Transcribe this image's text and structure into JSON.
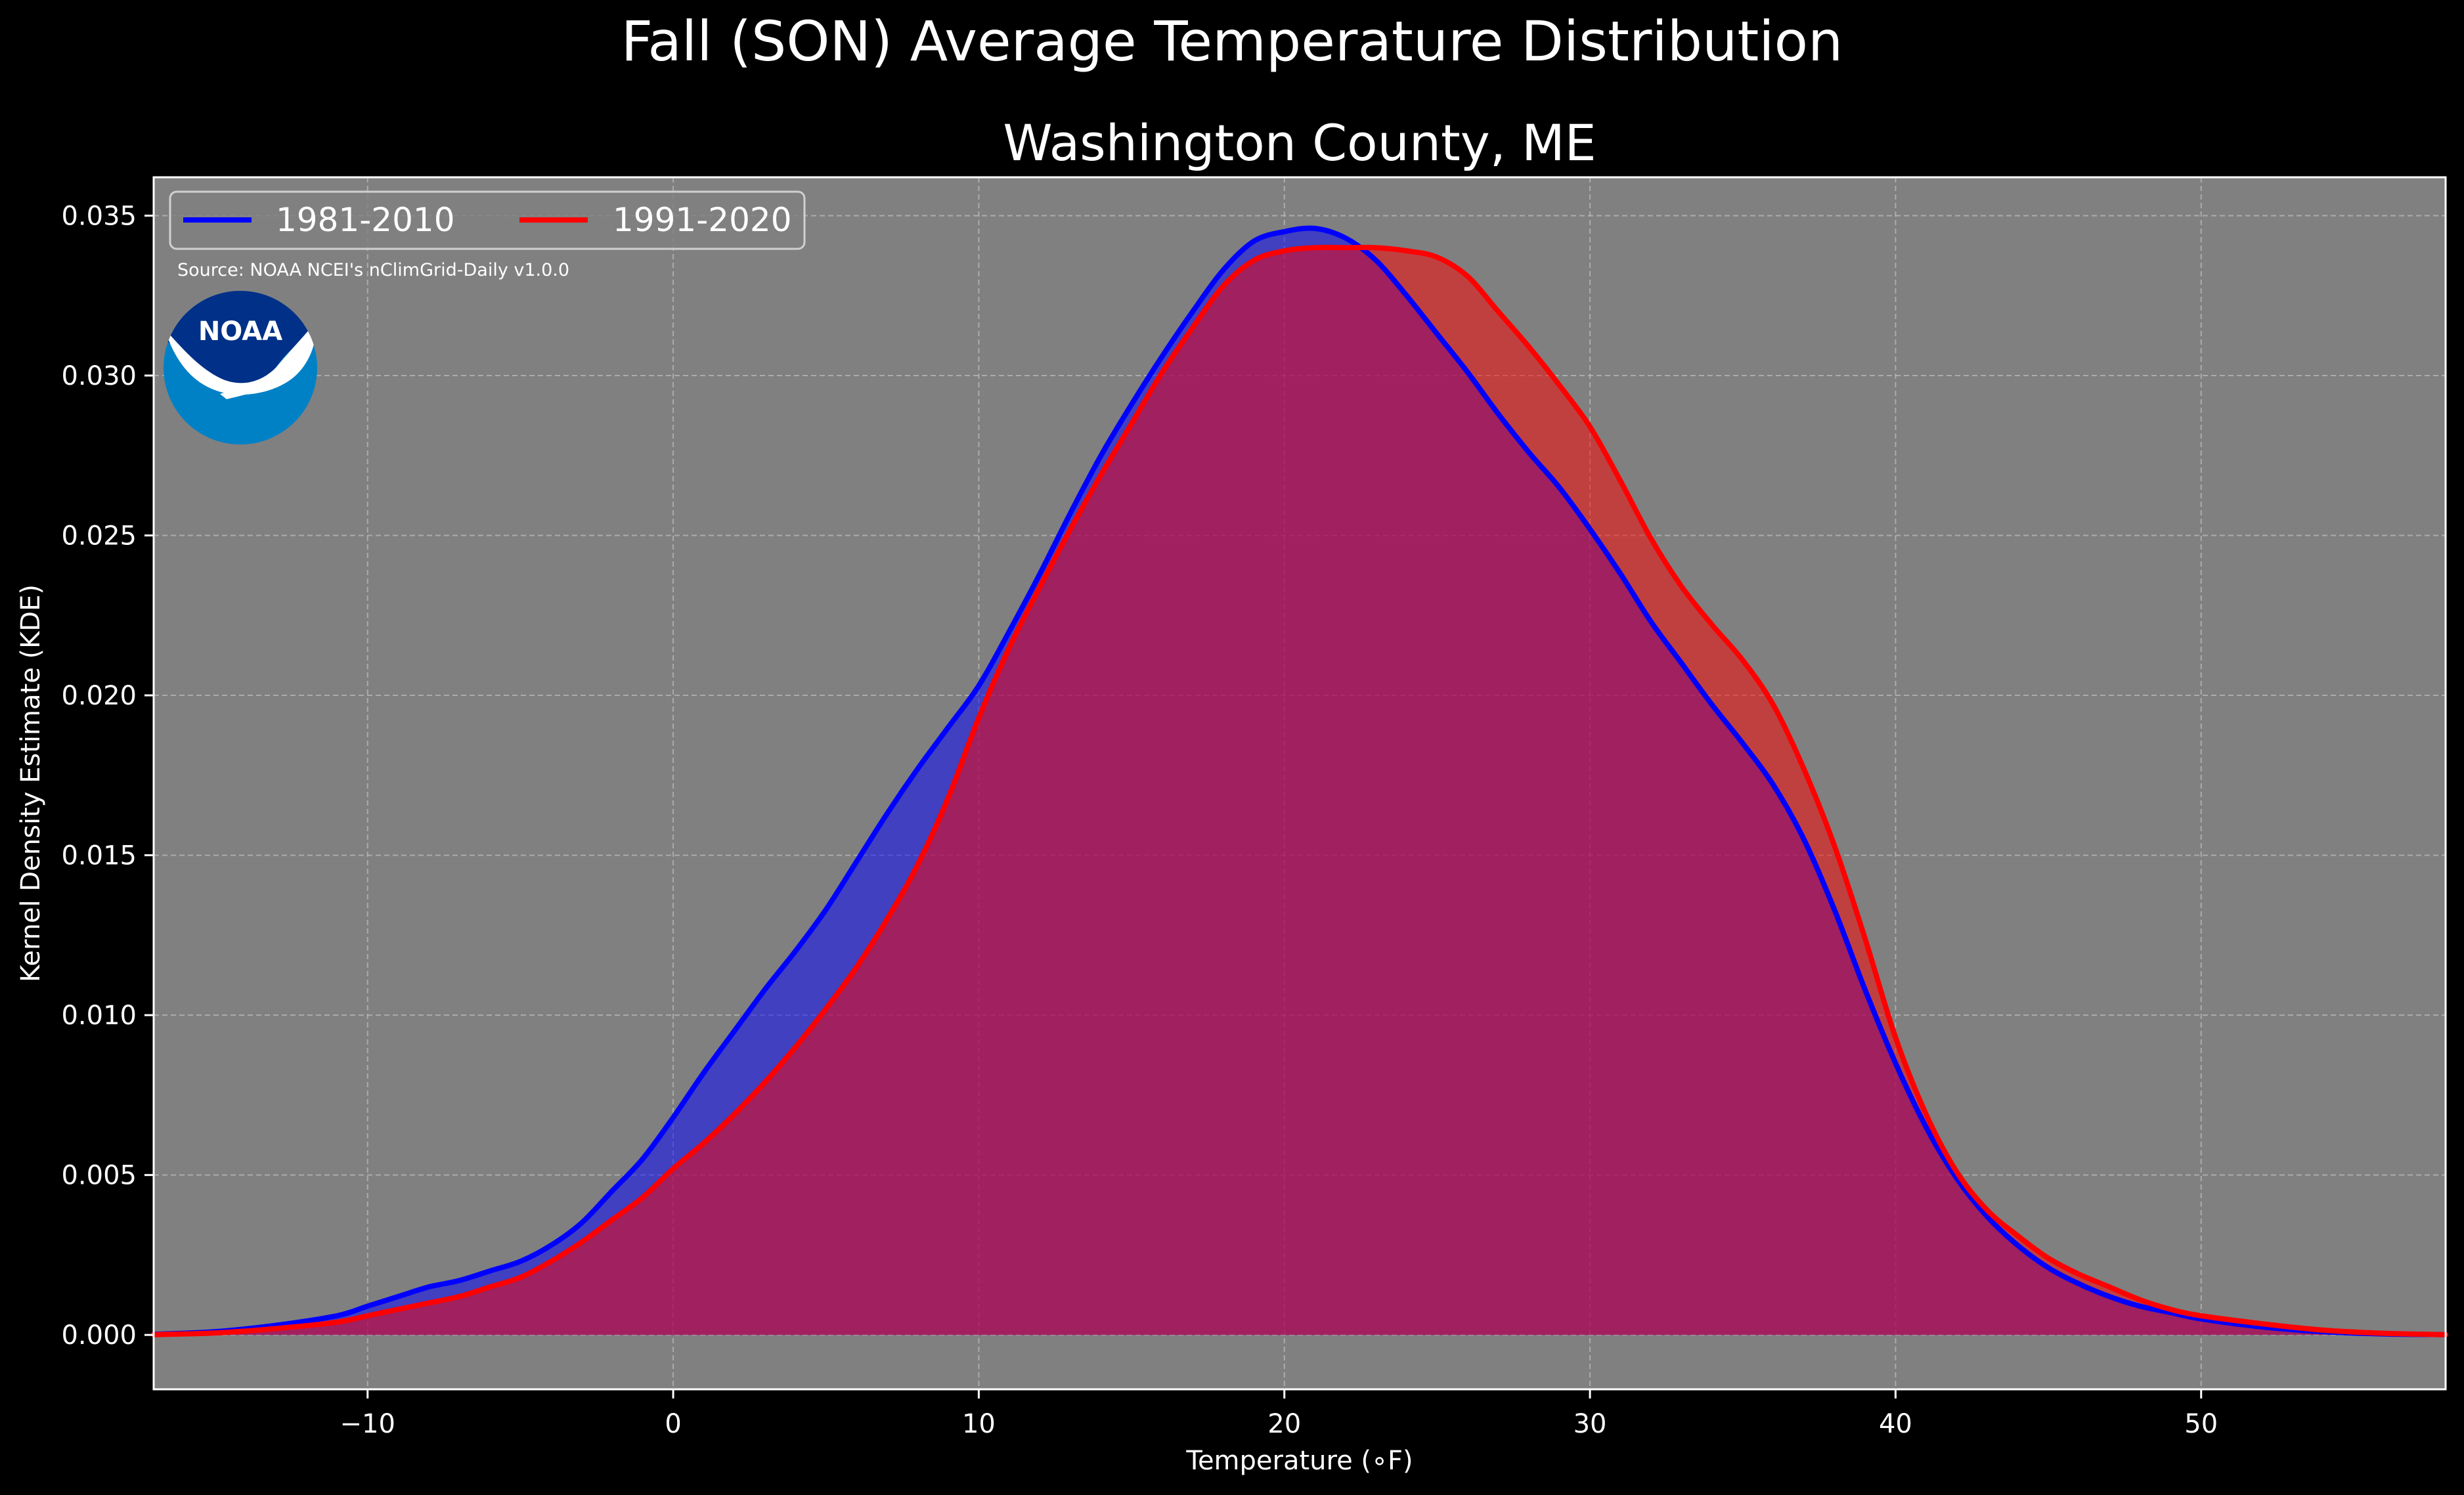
{
  "title": "Fall (SON) Average Temperature Distribution",
  "chart_data": {
    "type": "area",
    "title": "Washington County, ME",
    "xlabel": "Temperature (∘F)",
    "ylabel": "Kernel Density Estimate (KDE)",
    "xlim": [
      -17,
      58
    ],
    "ylim": [
      -0.0017,
      0.0362
    ],
    "xticks": [
      -10,
      0,
      10,
      20,
      30,
      40,
      50
    ],
    "xtick_labels": [
      "−10",
      "0",
      "10",
      "20",
      "30",
      "40",
      "50"
    ],
    "yticks": [
      0.0,
      0.005,
      0.01,
      0.015,
      0.02,
      0.025,
      0.03,
      0.035
    ],
    "ytick_labels": [
      "0.000",
      "0.005",
      "0.010",
      "0.015",
      "0.020",
      "0.025",
      "0.030",
      "0.035"
    ],
    "grid": true,
    "legend_position": "top-left",
    "source_note": "Source: NOAA NCEI's nClimGrid-Daily v1.0.0",
    "logo_text": "NOAA",
    "series": [
      {
        "name": "1981-2010",
        "color": "#0000ff",
        "fill_color": "#0000ff",
        "x": [
          -17,
          -15,
          -13,
          -11,
          -10,
          -9,
          -8,
          -7,
          -6,
          -5,
          -4,
          -3,
          -2,
          -1,
          0,
          1,
          2,
          3,
          4,
          5,
          6,
          7,
          8,
          9,
          10,
          11,
          12,
          13,
          14,
          15,
          16,
          17,
          18,
          19,
          20,
          21,
          22,
          23,
          24,
          25,
          26,
          27,
          28,
          29,
          30,
          31,
          32,
          33,
          34,
          35,
          36,
          37,
          38,
          39,
          40,
          41,
          42,
          43,
          44,
          45,
          46,
          47,
          48,
          49,
          50,
          52,
          54,
          56,
          58
        ],
        "y": [
          2e-05,
          0.0001,
          0.0003,
          0.0006,
          0.0009,
          0.0012,
          0.0015,
          0.0017,
          0.002,
          0.0023,
          0.0028,
          0.0035,
          0.0045,
          0.0055,
          0.0068,
          0.0082,
          0.0095,
          0.0108,
          0.012,
          0.0133,
          0.0148,
          0.0163,
          0.0177,
          0.019,
          0.0203,
          0.022,
          0.0238,
          0.0257,
          0.0275,
          0.0291,
          0.0306,
          0.032,
          0.0333,
          0.0342,
          0.0345,
          0.0346,
          0.0343,
          0.0336,
          0.0325,
          0.0313,
          0.0301,
          0.0288,
          0.0276,
          0.0265,
          0.0252,
          0.0238,
          0.0223,
          0.021,
          0.0197,
          0.0185,
          0.0172,
          0.0155,
          0.0133,
          0.0108,
          0.0085,
          0.0065,
          0.0049,
          0.0037,
          0.0028,
          0.0021,
          0.0016,
          0.0012,
          0.0009,
          0.0007,
          0.0005,
          0.00025,
          0.0001,
          3e-05,
          1e-05
        ]
      },
      {
        "name": "1991-2020",
        "color": "#ff0000",
        "fill_color": "#ff0000",
        "x": [
          -17,
          -15,
          -13,
          -11,
          -10,
          -9,
          -8,
          -7,
          -6,
          -5,
          -4,
          -3,
          -2,
          -1,
          0,
          1,
          2,
          3,
          4,
          5,
          6,
          7,
          8,
          9,
          10,
          11,
          12,
          13,
          14,
          15,
          16,
          17,
          18,
          19,
          20,
          21,
          22,
          23,
          24,
          25,
          26,
          27,
          28,
          29,
          30,
          31,
          32,
          33,
          34,
          35,
          36,
          37,
          38,
          39,
          40,
          41,
          42,
          43,
          44,
          45,
          46,
          47,
          48,
          49,
          50,
          52,
          54,
          56,
          58
        ],
        "y": [
          1e-05,
          6e-05,
          0.0002,
          0.0004,
          0.0006,
          0.0008,
          0.001,
          0.0012,
          0.0015,
          0.0018,
          0.0023,
          0.0029,
          0.0036,
          0.0043,
          0.0052,
          0.006,
          0.0069,
          0.0079,
          0.009,
          0.0102,
          0.0115,
          0.013,
          0.0147,
          0.0168,
          0.0193,
          0.0215,
          0.0234,
          0.0252,
          0.0269,
          0.0285,
          0.0301,
          0.0315,
          0.0328,
          0.0336,
          0.0339,
          0.034,
          0.034,
          0.034,
          0.0339,
          0.0337,
          0.0331,
          0.032,
          0.0309,
          0.0297,
          0.0284,
          0.0267,
          0.0249,
          0.0234,
          0.0222,
          0.0211,
          0.0197,
          0.0177,
          0.0153,
          0.0124,
          0.0093,
          0.0069,
          0.0051,
          0.0039,
          0.0031,
          0.0024,
          0.0019,
          0.0015,
          0.0011,
          0.0008,
          0.0006,
          0.00035,
          0.00015,
          5e-05,
          1e-05
        ]
      }
    ]
  },
  "colors": {
    "figure_background": "#000000",
    "plot_background": "#808080",
    "grid": "#c8c8c8",
    "text": "#ffffff",
    "logo_outer": "#0081c6",
    "logo_inner": "#003087"
  }
}
